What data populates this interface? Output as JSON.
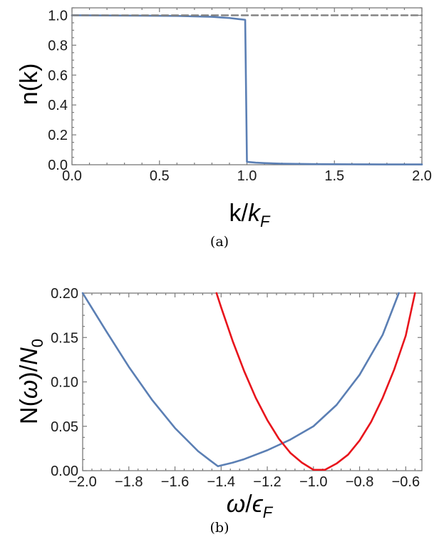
{
  "chart_data": [
    {
      "type": "line",
      "caption": "(a)",
      "ylabel": "n(k)",
      "xlabel_main": "k/",
      "xlabel_italic": "k",
      "xlabel_sub": "F",
      "xlim": [
        0.0,
        2.0
      ],
      "ylim": [
        0.0,
        1.05
      ],
      "xticks": [
        "0.0",
        "0.5",
        "1.0",
        "1.5",
        "2.0"
      ],
      "yticks": [
        "0.0",
        "0.2",
        "0.4",
        "0.6",
        "0.8",
        "1.0"
      ],
      "series": [
        {
          "color": "#5b7fb4",
          "style": "solid",
          "x": [
            0.0,
            0.2,
            0.4,
            0.6,
            0.7,
            0.8,
            0.85,
            0.9,
            0.95,
            0.99,
            1.0,
            1.01,
            1.05,
            1.1,
            1.2,
            1.4,
            1.6,
            1.8,
            2.0
          ],
          "y": [
            1.0,
            0.999,
            0.998,
            0.996,
            0.993,
            0.99,
            0.986,
            0.982,
            0.975,
            0.97,
            0.02,
            0.018,
            0.014,
            0.011,
            0.007,
            0.004,
            0.003,
            0.002,
            0.002
          ]
        },
        {
          "color": "#7f7f7f",
          "style": "dashed",
          "x": [
            0.0,
            2.0
          ],
          "y": [
            1.0,
            1.0
          ]
        }
      ]
    },
    {
      "type": "line",
      "caption": "(b)",
      "ylabel_main": "N(",
      "ylabel_omega": "ω",
      "ylabel_mid": ")/",
      "ylabel_N": "N",
      "ylabel_sub": "0",
      "xlabel_omega": "ω",
      "xlabel_slash": "/",
      "xlabel_eps": "ϵ",
      "xlabel_sub": "F",
      "xlim": [
        -2.0,
        -0.53
      ],
      "ylim": [
        0.0,
        0.2
      ],
      "xticks": [
        "−2.0",
        "−1.8",
        "−1.6",
        "−1.4",
        "−1.2",
        "−1.0",
        "−0.8",
        "−0.6"
      ],
      "xtick_values": [
        -2.0,
        -1.8,
        -1.6,
        -1.4,
        -1.2,
        -1.0,
        -0.8,
        -0.6
      ],
      "yticks": [
        "0.00",
        "0.05",
        "0.10",
        "0.15",
        "0.20"
      ],
      "ytick_values": [
        0.0,
        0.05,
        0.1,
        0.15,
        0.2
      ],
      "series": [
        {
          "color": "#5b7fb4",
          "x": [
            -2.0,
            -1.9,
            -1.8,
            -1.7,
            -1.6,
            -1.5,
            -1.45,
            -1.414,
            -1.35,
            -1.3,
            -1.2,
            -1.1,
            -1.0,
            -0.9,
            -0.8,
            -0.7,
            -0.63
          ],
          "y": [
            0.2,
            0.158,
            0.117,
            0.08,
            0.048,
            0.022,
            0.012,
            0.005,
            0.009,
            0.013,
            0.023,
            0.035,
            0.05,
            0.074,
            0.108,
            0.153,
            0.2
          ]
        },
        {
          "color": "#e8141c",
          "x": [
            -1.42,
            -1.4,
            -1.35,
            -1.3,
            -1.25,
            -1.2,
            -1.15,
            -1.1,
            -1.05,
            -1.0,
            -0.95,
            -0.9,
            -0.85,
            -0.8,
            -0.75,
            -0.7,
            -0.65,
            -0.6,
            -0.56
          ],
          "y": [
            0.2,
            0.184,
            0.146,
            0.112,
            0.082,
            0.057,
            0.036,
            0.02,
            0.009,
            0.001,
            0.001,
            0.008,
            0.018,
            0.034,
            0.055,
            0.082,
            0.114,
            0.152,
            0.2
          ]
        }
      ]
    }
  ]
}
